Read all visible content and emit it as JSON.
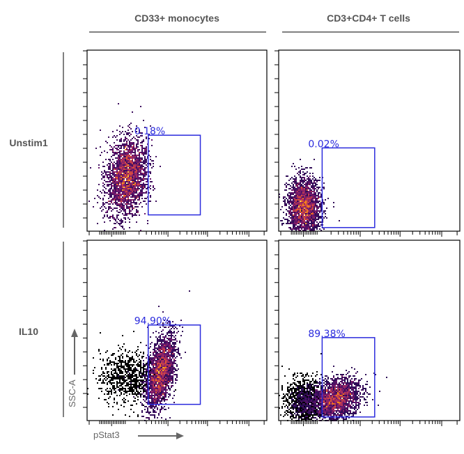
{
  "chart_data": {
    "type": "scatter",
    "subtype": "flow-cytometry-density-grid",
    "columns": [
      "CD33+ monocytes",
      "CD3+CD4+ T cells"
    ],
    "rows": [
      "Unstim1",
      "IL10"
    ],
    "xlabel": "pStat3",
    "ylabel": "SSC-A",
    "x_scale": "biexponential",
    "x_range": [
      0,
      1
    ],
    "y_range": [
      0,
      1
    ],
    "colormap": "inferno (black → purple → red → orange → yellow)",
    "gate_color": "#2b2bdd",
    "panels": [
      {
        "row": "Unstim1",
        "column": "CD33+ monocytes",
        "gate_label": "0.18%",
        "gate_percent": 0.18,
        "gate": {
          "x0": 0.34,
          "x1": 0.63,
          "y0": 0.09,
          "y1": 0.53
        },
        "populations": [
          {
            "cx": 0.22,
            "cy": 0.3,
            "sx": 0.055,
            "sy": 0.11,
            "rot": -0.15,
            "n": 2600,
            "peak": 1.0
          }
        ]
      },
      {
        "row": "Unstim1",
        "column": "CD3+CD4+ T cells",
        "gate_label": "0.02%",
        "gate_percent": 0.02,
        "gate": {
          "x0": 0.24,
          "x1": 0.53,
          "y0": 0.02,
          "y1": 0.46
        },
        "populations": [
          {
            "cx": 0.14,
            "cy": 0.13,
            "sx": 0.045,
            "sy": 0.08,
            "rot": 0,
            "n": 2400,
            "peak": 1.0
          }
        ]
      },
      {
        "row": "IL10",
        "column": "CD33+ monocytes",
        "gate_label": "94.90%",
        "gate_percent": 94.9,
        "gate": {
          "x0": 0.34,
          "x1": 0.63,
          "y0": 0.09,
          "y1": 0.53
        },
        "populations": [
          {
            "cx": 0.41,
            "cy": 0.27,
            "sx": 0.035,
            "sy": 0.11,
            "rot": -0.2,
            "n": 2200,
            "peak": 1.0
          },
          {
            "cx": 0.23,
            "cy": 0.24,
            "sx": 0.08,
            "sy": 0.07,
            "rot": 0,
            "n": 900,
            "peak": 0.15
          }
        ]
      },
      {
        "row": "IL10",
        "column": "CD3+CD4+ T cells",
        "gate_label": "89.38%",
        "gate_percent": 89.38,
        "gate": {
          "x0": 0.24,
          "x1": 0.53,
          "y0": 0.02,
          "y1": 0.46
        },
        "populations": [
          {
            "cx": 0.32,
            "cy": 0.12,
            "sx": 0.07,
            "sy": 0.05,
            "rot": 0.55,
            "n": 2200,
            "peak": 1.0
          },
          {
            "cx": 0.14,
            "cy": 0.11,
            "sx": 0.05,
            "sy": 0.06,
            "rot": 0,
            "n": 1300,
            "peak": 0.25
          }
        ]
      }
    ]
  }
}
